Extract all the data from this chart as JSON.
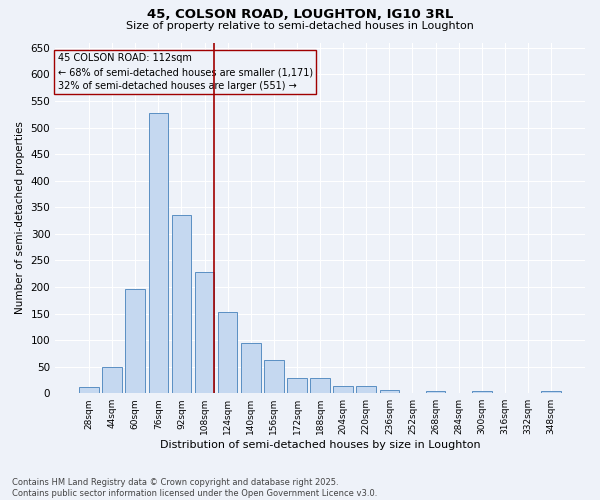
{
  "title": "45, COLSON ROAD, LOUGHTON, IG10 3RL",
  "subtitle": "Size of property relative to semi-detached houses in Loughton",
  "xlabel": "Distribution of semi-detached houses by size in Loughton",
  "ylabel": "Number of semi-detached properties",
  "categories": [
    "28sqm",
    "44sqm",
    "60sqm",
    "76sqm",
    "92sqm",
    "108sqm",
    "124sqm",
    "140sqm",
    "156sqm",
    "172sqm",
    "188sqm",
    "204sqm",
    "220sqm",
    "236sqm",
    "252sqm",
    "268sqm",
    "284sqm",
    "300sqm",
    "316sqm",
    "332sqm",
    "348sqm"
  ],
  "values": [
    11,
    50,
    196,
    527,
    336,
    229,
    153,
    95,
    63,
    29,
    29,
    13,
    13,
    6,
    0,
    5,
    0,
    4,
    0,
    0,
    5
  ],
  "bar_color": "#c5d8f0",
  "bar_edge_color": "#5a8fc3",
  "vline_index": 5,
  "vline_color": "#a00000",
  "annotation_text_line1": "45 COLSON ROAD: 112sqm",
  "annotation_text_line2": "← 68% of semi-detached houses are smaller (1,171)",
  "annotation_text_line3": "32% of semi-detached houses are larger (551) →",
  "ylim": [
    0,
    660
  ],
  "yticks": [
    0,
    50,
    100,
    150,
    200,
    250,
    300,
    350,
    400,
    450,
    500,
    550,
    600,
    650
  ],
  "background_color": "#eef2f9",
  "grid_color": "#ffffff",
  "footer_line1": "Contains HM Land Registry data © Crown copyright and database right 2025.",
  "footer_line2": "Contains public sector information licensed under the Open Government Licence v3.0."
}
